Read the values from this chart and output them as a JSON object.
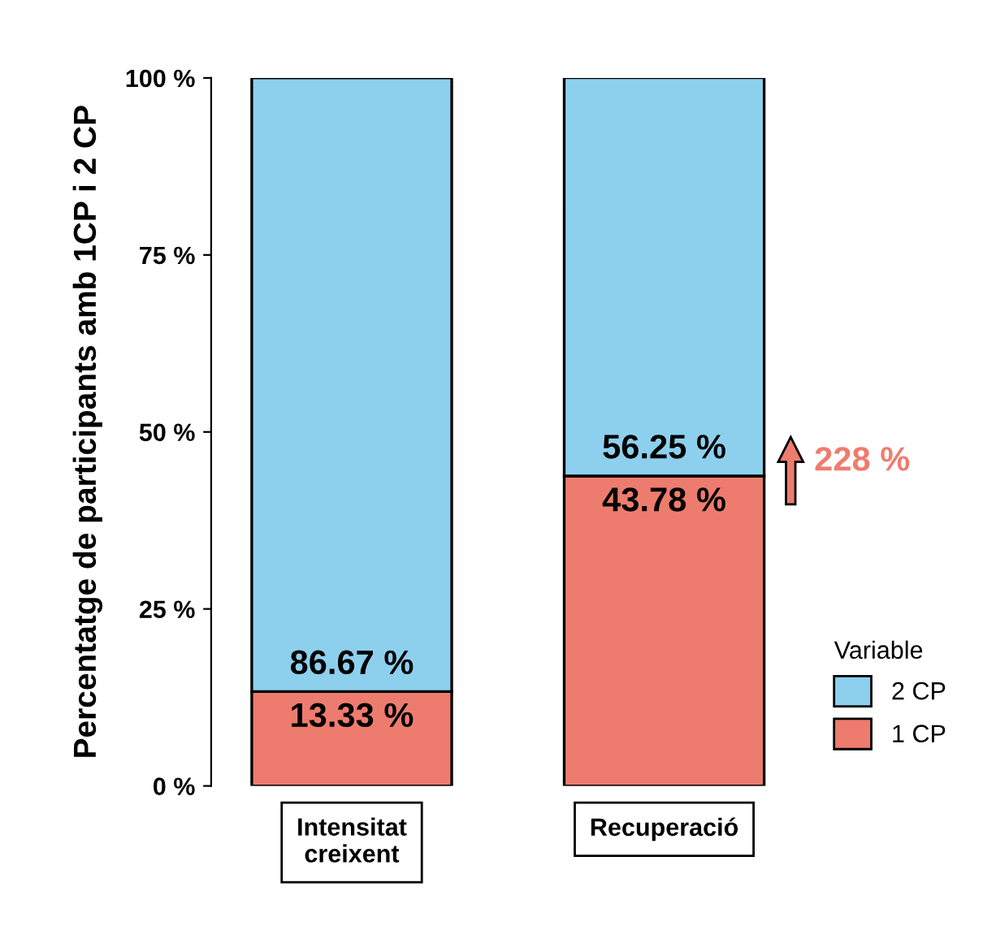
{
  "chart_data": {
    "type": "bar",
    "stacked": true,
    "ylabel": "Percentatge de participants amb 1CP i 2 CP",
    "categories": [
      "Intensitat\ncreixent",
      "Recuperació"
    ],
    "series": [
      {
        "name": "1 CP",
        "color": "#ee7c6e",
        "values": [
          13.33,
          43.78
        ],
        "value_labels": [
          "13.33 %",
          "43.78 %"
        ]
      },
      {
        "name": "2 CP",
        "color": "#8dd0ee",
        "values": [
          86.67,
          56.25
        ],
        "value_labels": [
          "86.67 %",
          "56.25 %"
        ]
      }
    ],
    "ylim": [
      0,
      100
    ],
    "yticks": [
      {
        "value": 0,
        "label": "0 %"
      },
      {
        "value": 25,
        "label": "25 %"
      },
      {
        "value": 50,
        "label": "50 %"
      },
      {
        "value": 75,
        "label": "75 %"
      },
      {
        "value": 100,
        "label": "100 %"
      }
    ],
    "legend_title": "Variable",
    "legend": "right",
    "grid": false,
    "annotations": [
      "228 %"
    ]
  }
}
